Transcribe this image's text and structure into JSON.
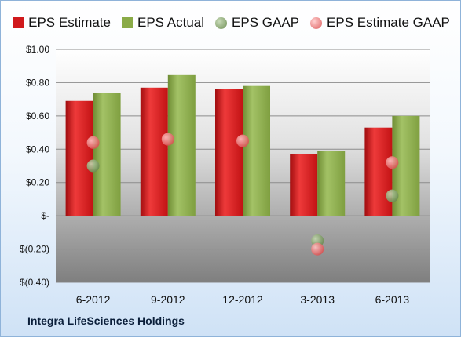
{
  "chart_data": {
    "type": "bar",
    "title": "",
    "xlabel": "",
    "ylabel": "",
    "categories": [
      "6-2012",
      "9-2012",
      "12-2012",
      "3-2013",
      "6-2013"
    ],
    "series": [
      {
        "name": "EPS Estimate",
        "kind": "bar",
        "color": "#d0191c",
        "values": [
          0.69,
          0.77,
          0.76,
          0.37,
          0.53
        ]
      },
      {
        "name": "EPS Actual",
        "kind": "bar",
        "color": "#8aab47",
        "values": [
          0.74,
          0.85,
          0.78,
          0.39,
          0.6
        ]
      },
      {
        "name": "EPS GAAP",
        "kind": "point",
        "color": "#7d9a63",
        "values": [
          0.3,
          null,
          null,
          -0.15,
          0.12
        ]
      },
      {
        "name": "EPS Estimate GAAP",
        "kind": "point",
        "color": "#e26a6a",
        "values": [
          0.44,
          0.46,
          0.45,
          -0.2,
          0.32
        ]
      }
    ],
    "ylim": [
      -0.4,
      1.0
    ],
    "yticks": [
      1.0,
      0.8,
      0.6,
      0.4,
      0.2,
      0.0,
      -0.2,
      -0.4
    ],
    "ytick_labels": [
      "$1.00",
      "$0.80",
      "$0.60",
      "$0.40",
      "$0.20",
      "$-",
      "$(0.20)",
      "$(0.40)"
    ],
    "grid": true,
    "legend_position": "top",
    "colors": {
      "plot_background_top": "#ffffff",
      "plot_background_bottom": "#7f7f7f",
      "gridline": "#8c8c8c",
      "tick_text": "#111111"
    }
  },
  "footer": {
    "company": "Integra LifeSciences Holdings"
  }
}
